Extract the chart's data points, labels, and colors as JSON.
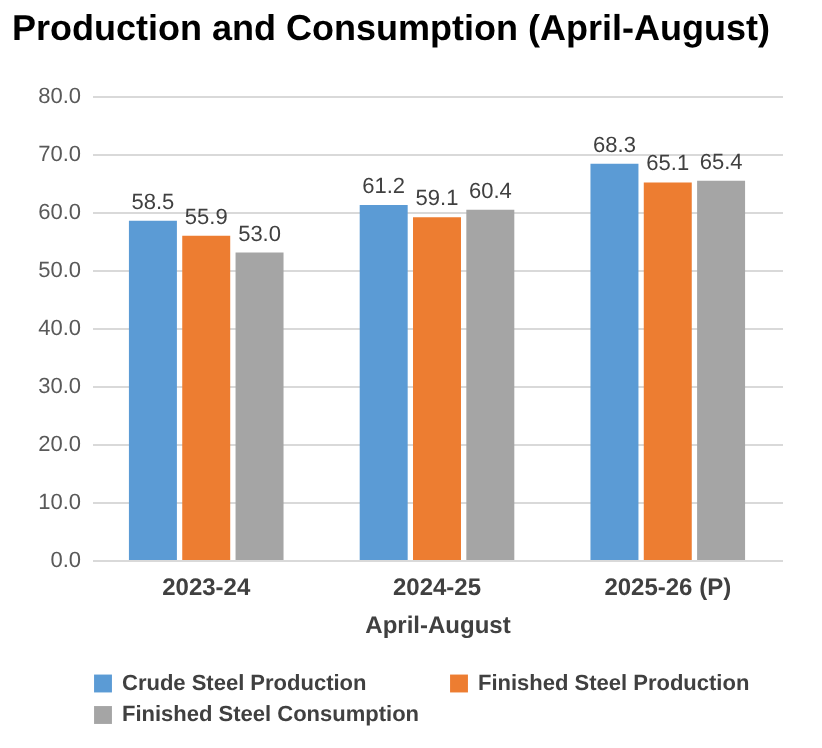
{
  "chart_data": {
    "type": "bar",
    "title": "Production and Consumption (April-August)",
    "xlabel": "April-August",
    "categories": [
      "2023-24",
      "2024-25",
      "2025-26 (P)"
    ],
    "series": [
      {
        "name": "Crude Steel Production",
        "color": "#5b9bd5",
        "values": [
          58.5,
          61.2,
          68.3
        ],
        "value_labels": [
          "58.5",
          "61.2",
          "68.3"
        ]
      },
      {
        "name": "Finished Steel Production",
        "color": "#ed7d31",
        "values": [
          55.9,
          59.1,
          65.1
        ],
        "value_labels": [
          "55.9",
          "59.1",
          "65.1"
        ]
      },
      {
        "name": "Finished Steel Consumption",
        "color": "#a5a5a5",
        "values": [
          53.0,
          60.4,
          65.4
        ],
        "value_labels": [
          "53.0",
          "60.4",
          "65.4"
        ]
      }
    ],
    "ylim": [
      0,
      80
    ],
    "yticks": [
      {
        "value": 0,
        "label": "0.0"
      },
      {
        "value": 10,
        "label": "10.0"
      },
      {
        "value": 20,
        "label": "20.0"
      },
      {
        "value": 30,
        "label": "30.0"
      },
      {
        "value": 40,
        "label": "40.0"
      },
      {
        "value": 50,
        "label": "50.0"
      },
      {
        "value": 60,
        "label": "60.0"
      },
      {
        "value": 70,
        "label": "70.0"
      },
      {
        "value": 80,
        "label": "80.0"
      }
    ],
    "grid": "y",
    "legend": "bottom"
  }
}
